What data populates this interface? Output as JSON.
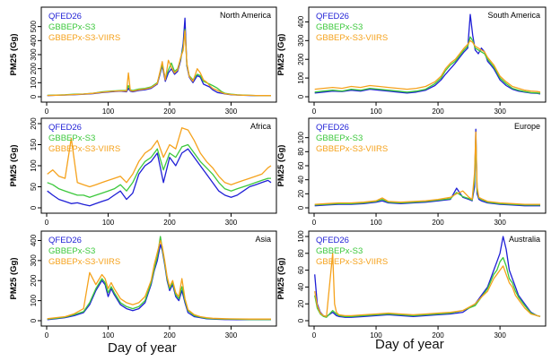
{
  "figure": {
    "common_xlabel_left": "Day of year",
    "common_xlabel_right": "Day of year"
  },
  "chart_data": [
    {
      "type": "line",
      "title": "North America",
      "xlabel": "",
      "ylabel": "PM25 (Gg)",
      "xlim": [
        0,
        365
      ],
      "ylim": [
        0,
        600
      ],
      "xticks": [
        0,
        100,
        200,
        300
      ],
      "yticks": [
        0,
        100,
        200,
        300,
        400,
        500
      ],
      "legend_position": "top-left",
      "x": [
        1,
        15,
        30,
        45,
        60,
        75,
        90,
        105,
        120,
        130,
        133,
        136,
        140,
        150,
        160,
        170,
        180,
        188,
        193,
        198,
        203,
        208,
        213,
        218,
        222,
        225,
        228,
        232,
        238,
        245,
        250,
        255,
        260,
        265,
        270,
        278,
        285,
        290,
        300,
        310,
        320,
        330,
        340,
        350,
        360,
        365
      ],
      "series": [
        {
          "name": "QFED26",
          "color": "#1f1fd6",
          "values": [
            8,
            10,
            12,
            15,
            18,
            22,
            30,
            35,
            40,
            35,
            60,
            40,
            35,
            45,
            50,
            60,
            90,
            220,
            110,
            170,
            200,
            160,
            180,
            260,
            380,
            560,
            220,
            140,
            100,
            150,
            140,
            90,
            80,
            70,
            50,
            30,
            25,
            20,
            15,
            12,
            10,
            9,
            8,
            8,
            7,
            7
          ]
        },
        {
          "name": "GBBEPx-S3",
          "color": "#3cc83c",
          "values": [
            10,
            12,
            14,
            18,
            20,
            25,
            35,
            40,
            45,
            45,
            80,
            50,
            45,
            55,
            60,
            70,
            100,
            230,
            130,
            190,
            240,
            180,
            200,
            270,
            350,
            480,
            230,
            150,
            120,
            160,
            150,
            110,
            100,
            90,
            80,
            60,
            35,
            25,
            18,
            14,
            12,
            10,
            9,
            9,
            8,
            8
          ]
        },
        {
          "name": "GBBEPx-S3-VIIRS",
          "color": "#f5a21c",
          "values": [
            9,
            11,
            13,
            16,
            19,
            24,
            32,
            38,
            42,
            40,
            170,
            45,
            40,
            50,
            55,
            65,
            95,
            250,
            120,
            260,
            210,
            170,
            190,
            280,
            330,
            470,
            240,
            145,
            110,
            200,
            170,
            120,
            105,
            80,
            60,
            45,
            30,
            22,
            16,
            13,
            11,
            10,
            9,
            8,
            8,
            8
          ]
        }
      ]
    },
    {
      "type": "line",
      "title": "South America",
      "xlabel": "",
      "ylabel": "PM25 (Gg)",
      "xlim": [
        0,
        365
      ],
      "ylim": [
        0,
        450
      ],
      "xticks": [
        0,
        100,
        200,
        300
      ],
      "yticks": [
        0,
        100,
        200,
        300,
        400
      ],
      "legend_position": "top-left",
      "x": [
        1,
        15,
        30,
        45,
        60,
        75,
        90,
        105,
        120,
        135,
        150,
        165,
        180,
        195,
        205,
        212,
        220,
        228,
        235,
        242,
        248,
        252,
        256,
        260,
        265,
        270,
        275,
        280,
        285,
        290,
        295,
        300,
        310,
        320,
        330,
        340,
        350,
        360,
        365
      ],
      "series": [
        {
          "name": "QFED26",
          "color": "#1f1fd6",
          "values": [
            20,
            25,
            30,
            28,
            35,
            30,
            40,
            35,
            30,
            25,
            20,
            25,
            35,
            60,
            90,
            120,
            150,
            180,
            210,
            240,
            260,
            440,
            330,
            250,
            230,
            260,
            240,
            190,
            170,
            150,
            120,
            90,
            60,
            40,
            30,
            25,
            20,
            18,
            15
          ]
        },
        {
          "name": "GBBEPx-S3",
          "color": "#3cc83c",
          "values": [
            25,
            30,
            35,
            30,
            40,
            35,
            45,
            40,
            35,
            30,
            25,
            30,
            40,
            70,
            100,
            140,
            170,
            190,
            220,
            250,
            270,
            320,
            300,
            260,
            250,
            240,
            230,
            200,
            180,
            160,
            130,
            100,
            70,
            45,
            35,
            28,
            22,
            20,
            18
          ]
        },
        {
          "name": "GBBEPx-S3-VIIRS",
          "color": "#f5a21c",
          "values": [
            40,
            45,
            50,
            45,
            55,
            50,
            60,
            55,
            50,
            45,
            40,
            45,
            55,
            80,
            110,
            150,
            180,
            200,
            230,
            260,
            280,
            300,
            290,
            270,
            260,
            250,
            240,
            210,
            190,
            170,
            140,
            110,
            80,
            55,
            45,
            35,
            30,
            28,
            25
          ]
        }
      ]
    },
    {
      "type": "line",
      "title": "Africa",
      "xlabel": "",
      "ylabel": "PM25 (Gg)",
      "xlim": [
        0,
        365
      ],
      "ylim": [
        0,
        200
      ],
      "xticks": [
        0,
        100,
        200,
        300
      ],
      "yticks": [
        0,
        50,
        100,
        150,
        200
      ],
      "legend_position": "top-left",
      "x": [
        1,
        10,
        20,
        30,
        40,
        50,
        60,
        70,
        80,
        90,
        100,
        110,
        120,
        130,
        140,
        150,
        160,
        170,
        180,
        190,
        200,
        210,
        220,
        230,
        240,
        250,
        260,
        270,
        280,
        290,
        300,
        310,
        320,
        330,
        340,
        350,
        360,
        365
      ],
      "series": [
        {
          "name": "QFED26",
          "color": "#1f1fd6",
          "values": [
            40,
            30,
            20,
            15,
            10,
            12,
            8,
            5,
            10,
            15,
            20,
            30,
            40,
            20,
            35,
            80,
            100,
            110,
            130,
            60,
            120,
            100,
            130,
            140,
            120,
            100,
            80,
            60,
            40,
            30,
            25,
            30,
            40,
            50,
            55,
            60,
            65,
            60
          ]
        },
        {
          "name": "GBBEPx-S3",
          "color": "#3cc83c",
          "values": [
            60,
            55,
            45,
            40,
            35,
            30,
            30,
            25,
            30,
            35,
            40,
            45,
            55,
            40,
            60,
            90,
            110,
            120,
            140,
            90,
            130,
            120,
            145,
            150,
            130,
            110,
            95,
            80,
            60,
            45,
            40,
            45,
            50,
            55,
            60,
            65,
            70,
            70
          ]
        },
        {
          "name": "GBBEPx-S3-VIIRS",
          "color": "#f5a21c",
          "values": [
            80,
            90,
            75,
            70,
            165,
            60,
            55,
            50,
            55,
            60,
            65,
            70,
            75,
            60,
            80,
            110,
            130,
            140,
            160,
            120,
            150,
            140,
            190,
            185,
            160,
            130,
            110,
            95,
            75,
            60,
            55,
            60,
            65,
            70,
            75,
            80,
            95,
            100
          ]
        }
      ]
    },
    {
      "type": "line",
      "title": "Europe",
      "xlabel": "",
      "ylabel": "PM25 (Gg)",
      "xlim": [
        0,
        365
      ],
      "ylim": [
        0,
        120
      ],
      "xticks": [
        0,
        100,
        200,
        300
      ],
      "yticks": [
        0,
        20,
        40,
        60,
        80,
        100
      ],
      "legend_position": "top-left",
      "x": [
        1,
        20,
        40,
        60,
        80,
        100,
        110,
        120,
        140,
        160,
        180,
        200,
        220,
        230,
        240,
        250,
        255,
        259,
        261,
        263,
        266,
        270,
        280,
        300,
        320,
        340,
        360,
        365
      ],
      "series": [
        {
          "name": "QFED26",
          "color": "#1f1fd6",
          "values": [
            3,
            4,
            5,
            5,
            6,
            8,
            10,
            7,
            6,
            7,
            8,
            10,
            12,
            28,
            15,
            12,
            10,
            30,
            112,
            20,
            12,
            10,
            7,
            5,
            4,
            3,
            3,
            3
          ]
        },
        {
          "name": "GBBEPx-S3",
          "color": "#3cc83c",
          "values": [
            4,
            5,
            6,
            6,
            7,
            9,
            12,
            8,
            7,
            8,
            9,
            11,
            13,
            22,
            16,
            13,
            11,
            40,
            100,
            25,
            14,
            12,
            8,
            6,
            5,
            4,
            4,
            4
          ]
        },
        {
          "name": "GBBEPx-S3-VIIRS",
          "color": "#f5a21c",
          "values": [
            5,
            6,
            7,
            7,
            8,
            10,
            14,
            9,
            8,
            9,
            10,
            12,
            15,
            20,
            24,
            15,
            12,
            50,
            108,
            30,
            15,
            13,
            9,
            7,
            6,
            5,
            5,
            5
          ]
        }
      ]
    },
    {
      "type": "line",
      "title": "Asia",
      "xlabel": "",
      "ylabel": "PM25 (Gg)",
      "xlim": [
        0,
        365
      ],
      "ylim": [
        0,
        420
      ],
      "xticks": [
        0,
        100,
        200,
        300
      ],
      "yticks": [
        0,
        100,
        200,
        300,
        400
      ],
      "legend_position": "top-left",
      "x": [
        1,
        15,
        30,
        45,
        60,
        70,
        80,
        90,
        95,
        100,
        105,
        110,
        120,
        130,
        140,
        150,
        160,
        170,
        175,
        180,
        185,
        188,
        192,
        196,
        200,
        205,
        210,
        215,
        220,
        225,
        230,
        240,
        250,
        260,
        270,
        290,
        310,
        330,
        350,
        365
      ],
      "series": [
        {
          "name": "QFED26",
          "color": "#1f1fd6",
          "values": [
            5,
            10,
            15,
            25,
            40,
            80,
            150,
            200,
            180,
            120,
            160,
            130,
            80,
            60,
            50,
            60,
            90,
            180,
            250,
            300,
            380,
            350,
            280,
            200,
            150,
            180,
            120,
            100,
            150,
            90,
            40,
            20,
            15,
            10,
            8,
            6,
            5,
            5,
            5,
            5
          ]
        },
        {
          "name": "GBBEPx-S3",
          "color": "#3cc83c",
          "values": [
            8,
            12,
            18,
            30,
            45,
            90,
            160,
            210,
            190,
            140,
            170,
            140,
            90,
            70,
            60,
            70,
            100,
            190,
            260,
            320,
            420,
            360,
            290,
            210,
            160,
            190,
            130,
            110,
            170,
            100,
            50,
            25,
            18,
            12,
            10,
            8,
            7,
            6,
            6,
            6
          ]
        },
        {
          "name": "GBBEPx-S3-VIIRS",
          "color": "#f5a21c",
          "values": [
            10,
            15,
            20,
            35,
            60,
            240,
            180,
            230,
            210,
            160,
            190,
            160,
            110,
            90,
            80,
            90,
            120,
            200,
            280,
            340,
            400,
            370,
            300,
            220,
            170,
            200,
            140,
            120,
            210,
            110,
            55,
            30,
            20,
            15,
            12,
            10,
            9,
            8,
            8,
            8
          ]
        }
      ]
    },
    {
      "type": "line",
      "title": "Australia",
      "xlabel": "",
      "ylabel": "PM25 (Gg)",
      "xlim": [
        0,
        365
      ],
      "ylim": [
        0,
        100
      ],
      "xticks": [
        0,
        100,
        200,
        300
      ],
      "yticks": [
        0,
        20,
        40,
        60,
        80,
        100
      ],
      "legend_position": "top-left",
      "x": [
        1,
        5,
        10,
        15,
        20,
        30,
        33,
        36,
        40,
        50,
        60,
        80,
        100,
        120,
        140,
        160,
        180,
        200,
        220,
        240,
        260,
        270,
        280,
        290,
        295,
        300,
        305,
        310,
        315,
        320,
        325,
        330,
        340,
        350,
        360,
        365
      ],
      "series": [
        {
          "name": "QFED26",
          "color": "#1f1fd6",
          "values": [
            55,
            20,
            10,
            6,
            5,
            10,
            8,
            6,
            5,
            4,
            4,
            5,
            6,
            7,
            6,
            5,
            6,
            7,
            8,
            10,
            20,
            30,
            40,
            60,
            70,
            80,
            100,
            85,
            60,
            50,
            40,
            30,
            20,
            10,
            6,
            5
          ]
        },
        {
          "name": "GBBEPx-S3",
          "color": "#3cc83c",
          "values": [
            30,
            15,
            8,
            5,
            4,
            12,
            10,
            8,
            6,
            5,
            5,
            6,
            7,
            8,
            7,
            6,
            7,
            8,
            9,
            12,
            18,
            28,
            38,
            55,
            60,
            70,
            75,
            65,
            50,
            45,
            35,
            28,
            18,
            9,
            6,
            5
          ]
        },
        {
          "name": "GBBEPx-S3-VIIRS",
          "color": "#f5a21c",
          "values": [
            35,
            18,
            9,
            6,
            5,
            80,
            20,
            10,
            7,
            6,
            6,
            7,
            8,
            9,
            8,
            7,
            8,
            9,
            10,
            12,
            20,
            28,
            35,
            50,
            55,
            60,
            65,
            55,
            45,
            40,
            30,
            25,
            15,
            8,
            6,
            5
          ]
        }
      ]
    }
  ]
}
